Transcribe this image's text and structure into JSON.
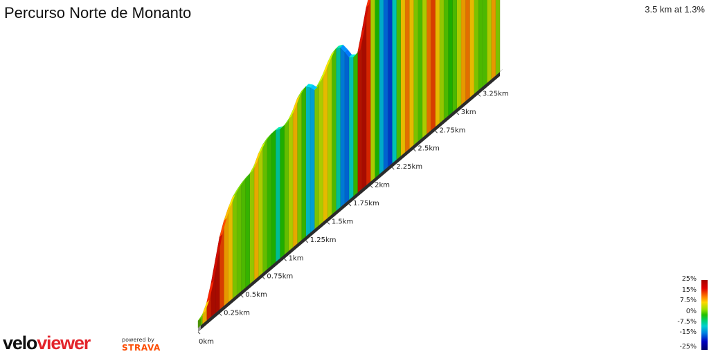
{
  "header": {
    "title": "Percurso Norte de Monanto",
    "summary": "3.5 km at 1.3%"
  },
  "legend": {
    "labels": [
      "25%",
      "15%",
      "7.5%",
      "0%",
      "-7.5%",
      "-15%",
      "-25%"
    ],
    "colors": {
      "max": "#a50000",
      "high": "#ff7f00",
      "mid_up": "#ffd700",
      "flat": "#21c000",
      "mid_down": "#00d0d0",
      "low": "#0080e0",
      "min": "#00006a"
    }
  },
  "branding": {
    "logo_part1": "velo",
    "logo_part2": "viewer",
    "powered_by": "powered by",
    "strava": "STRAVA"
  },
  "chart_data": {
    "type": "area",
    "title": "Percurso Norte de Monanto",
    "xlabel": "",
    "ylabel": "",
    "x_unit": "km",
    "tick_labels": [
      "0km",
      "0.25km",
      "0.5km",
      "0.75km",
      "1km",
      "1.25km",
      "1.5km",
      "1.75km",
      "2km",
      "2.25km",
      "2.5km",
      "2.75km",
      "3km",
      "3.25km"
    ],
    "tick_values": [
      0,
      0.25,
      0.5,
      0.75,
      1.0,
      1.25,
      1.5,
      1.75,
      2.0,
      2.25,
      2.5,
      2.75,
      3.0,
      3.25
    ],
    "total_distance_km": 3.5,
    "average_grade_percent": 1.3,
    "grade_scale_percent": [
      -25,
      25
    ],
    "series": [
      {
        "x_km": [
          0,
          0.05,
          0.1,
          0.15,
          0.2,
          0.25,
          0.3,
          0.35,
          0.4,
          0.45,
          0.5,
          0.55,
          0.6,
          0.65,
          0.7,
          0.75,
          0.8,
          0.85,
          0.9,
          0.95,
          1.0,
          1.05,
          1.1,
          1.15,
          1.2,
          1.25,
          1.3,
          1.35,
          1.4,
          1.45,
          1.5,
          1.55,
          1.6,
          1.65,
          1.7,
          1.75,
          1.8,
          1.85,
          1.9,
          1.95,
          2.0,
          2.05,
          2.1,
          2.15,
          2.2,
          2.25,
          2.3,
          2.35,
          2.4,
          2.45,
          2.5,
          2.55,
          2.6,
          2.65,
          2.7,
          2.75,
          2.8,
          2.85,
          2.9,
          2.95,
          3.0,
          3.05,
          3.1,
          3.15,
          3.2,
          3.25,
          3.3,
          3.35,
          3.4,
          3.45,
          3.5
        ],
        "grade_percent": [
          3,
          9,
          17,
          22,
          22,
          14,
          10,
          8,
          4,
          3,
          2,
          1,
          5,
          9,
          6,
          3,
          1,
          0,
          -3,
          0,
          3,
          6,
          9,
          4,
          1,
          -5,
          -7,
          4,
          6,
          8,
          6,
          2,
          -3,
          -9,
          -10,
          -4,
          1,
          20,
          22,
          15,
          6,
          0,
          -6,
          -10,
          -12,
          -4,
          2,
          8,
          12,
          8,
          4,
          2,
          6,
          12,
          14,
          8,
          5,
          2,
          0,
          2,
          6,
          10,
          12,
          8,
          4,
          2,
          2,
          6,
          10,
          4,
          2
        ]
      }
    ]
  }
}
